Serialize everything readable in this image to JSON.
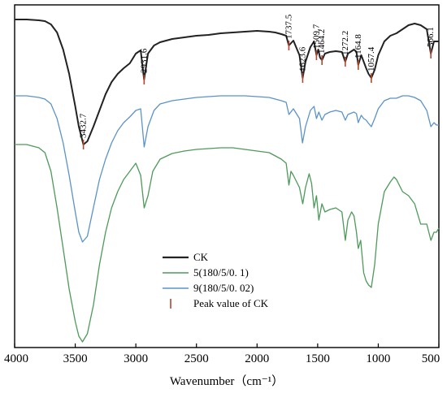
{
  "chart_data": {
    "type": "line",
    "title": "",
    "xlabel": "Wavenumber（cm⁻¹）",
    "ylabel": "",
    "xlim": [
      4000,
      500
    ],
    "x_reversed": true,
    "xticks": [
      "4000",
      "3500",
      "3000",
      "2500",
      "2000",
      "1500",
      "1000",
      "500"
    ],
    "xtick_values": [
      4000,
      3500,
      3000,
      2500,
      2000,
      1500,
      1000,
      500
    ],
    "grid": false,
    "legend_position": "lower-center",
    "legend": [
      {
        "label": "CK",
        "color": "#222222",
        "marker": "line"
      },
      {
        "label": "5(180/5/0. 1)",
        "color": "#4d9a5a",
        "marker": "line"
      },
      {
        "label": "9(180/5/0. 02)",
        "color": "#5b93c8",
        "marker": "line"
      },
      {
        "label": "Peak value of CK",
        "color": "#b5452f",
        "marker": "tick"
      }
    ],
    "series": [
      {
        "name": "CK",
        "color": "#222222",
        "points": [
          [
            4000,
            18
          ],
          [
            3900,
            18
          ],
          [
            3800,
            19
          ],
          [
            3750,
            20
          ],
          [
            3700,
            24
          ],
          [
            3650,
            34
          ],
          [
            3600,
            55
          ],
          [
            3550,
            85
          ],
          [
            3500,
            125
          ],
          [
            3470,
            150
          ],
          [
            3432.7,
            172
          ],
          [
            3400,
            168
          ],
          [
            3350,
            150
          ],
          [
            3300,
            130
          ],
          [
            3250,
            110
          ],
          [
            3200,
            95
          ],
          [
            3150,
            85
          ],
          [
            3100,
            78
          ],
          [
            3050,
            72
          ],
          [
            3000,
            60
          ],
          [
            2960,
            56
          ],
          [
            2931.6,
            92
          ],
          [
            2900,
            60
          ],
          [
            2850,
            50
          ],
          [
            2800,
            46
          ],
          [
            2700,
            42
          ],
          [
            2600,
            40
          ],
          [
            2500,
            38
          ],
          [
            2400,
            37
          ],
          [
            2300,
            35
          ],
          [
            2200,
            34
          ],
          [
            2100,
            33
          ],
          [
            2000,
            32
          ],
          [
            1900,
            33
          ],
          [
            1850,
            34
          ],
          [
            1800,
            36
          ],
          [
            1760,
            38
          ],
          [
            1737.5,
            50
          ],
          [
            1700,
            44
          ],
          [
            1650,
            62
          ],
          [
            1623.6,
            90
          ],
          [
            1600,
            70
          ],
          [
            1560,
            52
          ],
          [
            1530,
            45
          ],
          [
            1509.7,
            62
          ],
          [
            1495,
            55
          ],
          [
            1480,
            65
          ],
          [
            1464.2,
            68
          ],
          [
            1440,
            60
          ],
          [
            1400,
            58
          ],
          [
            1350,
            57
          ],
          [
            1300,
            58
          ],
          [
            1272.2,
            70
          ],
          [
            1250,
            60
          ],
          [
            1200,
            55
          ],
          [
            1180,
            58
          ],
          [
            1164.8,
            74
          ],
          [
            1140,
            62
          ],
          [
            1120,
            70
          ],
          [
            1100,
            78
          ],
          [
            1080,
            85
          ],
          [
            1057.4,
            90
          ],
          [
            1030,
            80
          ],
          [
            1000,
            62
          ],
          [
            950,
            45
          ],
          [
            900,
            38
          ],
          [
            850,
            35
          ],
          [
            800,
            30
          ],
          [
            750,
            25
          ],
          [
            700,
            23
          ],
          [
            650,
            25
          ],
          [
            600,
            30
          ],
          [
            566.1,
            60
          ],
          [
            540,
            45
          ],
          [
            520,
            45
          ],
          [
            500,
            45
          ]
        ]
      },
      {
        "name": "9(180/5/0. 02)",
        "color": "#5b93c8",
        "points": [
          [
            4000,
            112
          ],
          [
            3900,
            112
          ],
          [
            3800,
            114
          ],
          [
            3750,
            116
          ],
          [
            3700,
            122
          ],
          [
            3650,
            140
          ],
          [
            3600,
            170
          ],
          [
            3550,
            210
          ],
          [
            3500,
            255
          ],
          [
            3470,
            280
          ],
          [
            3440,
            292
          ],
          [
            3400,
            285
          ],
          [
            3350,
            250
          ],
          [
            3300,
            215
          ],
          [
            3250,
            190
          ],
          [
            3200,
            170
          ],
          [
            3150,
            155
          ],
          [
            3100,
            145
          ],
          [
            3050,
            138
          ],
          [
            3000,
            130
          ],
          [
            2960,
            128
          ],
          [
            2931,
            175
          ],
          [
            2900,
            150
          ],
          [
            2850,
            130
          ],
          [
            2800,
            122
          ],
          [
            2700,
            118
          ],
          [
            2600,
            116
          ],
          [
            2500,
            114
          ],
          [
            2400,
            113
          ],
          [
            2300,
            112
          ],
          [
            2200,
            112
          ],
          [
            2100,
            112
          ],
          [
            2000,
            113
          ],
          [
            1900,
            114
          ],
          [
            1800,
            118
          ],
          [
            1760,
            120
          ],
          [
            1737,
            135
          ],
          [
            1700,
            128
          ],
          [
            1650,
            140
          ],
          [
            1625,
            170
          ],
          [
            1600,
            150
          ],
          [
            1560,
            130
          ],
          [
            1530,
            125
          ],
          [
            1510,
            140
          ],
          [
            1490,
            132
          ],
          [
            1465,
            142
          ],
          [
            1440,
            135
          ],
          [
            1400,
            132
          ],
          [
            1350,
            130
          ],
          [
            1300,
            132
          ],
          [
            1272,
            142
          ],
          [
            1250,
            135
          ],
          [
            1200,
            132
          ],
          [
            1180,
            134
          ],
          [
            1165,
            145
          ],
          [
            1140,
            136
          ],
          [
            1120,
            140
          ],
          [
            1100,
            142
          ],
          [
            1080,
            146
          ],
          [
            1057,
            150
          ],
          [
            1030,
            140
          ],
          [
            1000,
            128
          ],
          [
            950,
            118
          ],
          [
            900,
            115
          ],
          [
            850,
            115
          ],
          [
            800,
            112
          ],
          [
            750,
            112
          ],
          [
            700,
            114
          ],
          [
            650,
            118
          ],
          [
            600,
            130
          ],
          [
            566,
            150
          ],
          [
            540,
            145
          ],
          [
            520,
            148
          ],
          [
            500,
            148
          ]
        ]
      },
      {
        "name": "5(180/5/0. 1)",
        "color": "#4d9a5a",
        "points": [
          [
            4000,
            172
          ],
          [
            3900,
            172
          ],
          [
            3800,
            176
          ],
          [
            3750,
            182
          ],
          [
            3700,
            205
          ],
          [
            3650,
            250
          ],
          [
            3600,
            300
          ],
          [
            3550,
            350
          ],
          [
            3500,
            390
          ],
          [
            3470,
            408
          ],
          [
            3440,
            415
          ],
          [
            3400,
            405
          ],
          [
            3350,
            370
          ],
          [
            3300,
            320
          ],
          [
            3250,
            280
          ],
          [
            3200,
            250
          ],
          [
            3150,
            230
          ],
          [
            3100,
            215
          ],
          [
            3050,
            205
          ],
          [
            3000,
            195
          ],
          [
            2960,
            210
          ],
          [
            2931,
            250
          ],
          [
            2900,
            235
          ],
          [
            2860,
            205
          ],
          [
            2800,
            190
          ],
          [
            2700,
            183
          ],
          [
            2600,
            180
          ],
          [
            2500,
            178
          ],
          [
            2400,
            177
          ],
          [
            2300,
            176
          ],
          [
            2200,
            176
          ],
          [
            2100,
            178
          ],
          [
            2000,
            180
          ],
          [
            1900,
            182
          ],
          [
            1850,
            186
          ],
          [
            1800,
            190
          ],
          [
            1760,
            195
          ],
          [
            1737,
            222
          ],
          [
            1720,
            205
          ],
          [
            1700,
            210
          ],
          [
            1650,
            225
          ],
          [
            1623,
            245
          ],
          [
            1600,
            225
          ],
          [
            1570,
            208
          ],
          [
            1550,
            220
          ],
          [
            1530,
            250
          ],
          [
            1510,
            235
          ],
          [
            1490,
            265
          ],
          [
            1465,
            245
          ],
          [
            1440,
            255
          ],
          [
            1400,
            252
          ],
          [
            1350,
            250
          ],
          [
            1300,
            255
          ],
          [
            1272,
            290
          ],
          [
            1250,
            265
          ],
          [
            1220,
            255
          ],
          [
            1200,
            260
          ],
          [
            1180,
            280
          ],
          [
            1165,
            300
          ],
          [
            1145,
            290
          ],
          [
            1120,
            330
          ],
          [
            1100,
            340
          ],
          [
            1080,
            345
          ],
          [
            1057,
            348
          ],
          [
            1030,
            320
          ],
          [
            1000,
            270
          ],
          [
            950,
            230
          ],
          [
            900,
            218
          ],
          [
            870,
            212
          ],
          [
            850,
            215
          ],
          [
            800,
            230
          ],
          [
            750,
            235
          ],
          [
            700,
            245
          ],
          [
            650,
            270
          ],
          [
            600,
            270
          ],
          [
            566,
            290
          ],
          [
            540,
            280
          ],
          [
            520,
            280
          ],
          [
            500,
            275
          ]
        ]
      }
    ],
    "peak_markers": [
      {
        "x": 3432.7,
        "label": "3432.7"
      },
      {
        "x": 2931.6,
        "label": "2931.6"
      },
      {
        "x": 1737.5,
        "label": "1737.5"
      },
      {
        "x": 1623.6,
        "label": "1623.6"
      },
      {
        "x": 1509.7,
        "label": "1509.7"
      },
      {
        "x": 1464.2,
        "label": "1464.2"
      },
      {
        "x": 1272.2,
        "label": "1272.2"
      },
      {
        "x": 1164.8,
        "label": "1164.8"
      },
      {
        "x": 1057.4,
        "label": "1057.4"
      },
      {
        "x": 566.1,
        "label": "566.1"
      }
    ]
  }
}
